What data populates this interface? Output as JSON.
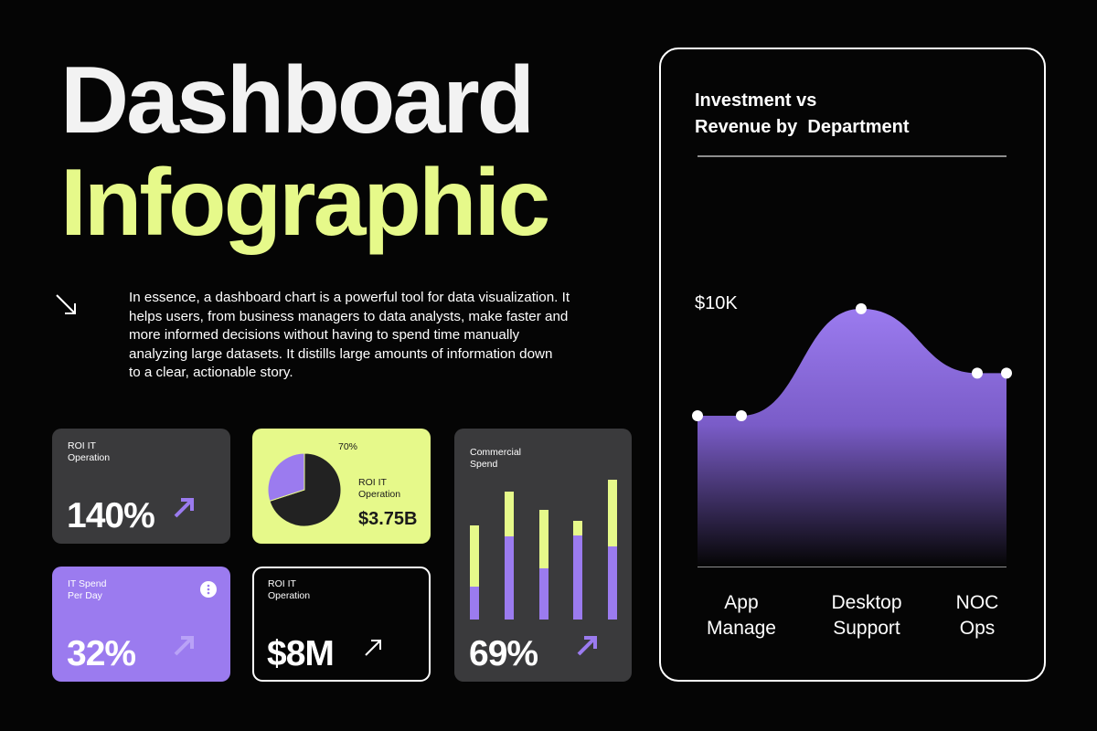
{
  "header": {
    "title_lines": [
      "Dashboard",
      "Infographic"
    ],
    "description_lines": [
      "In essence, a dashboard chart is a powerful tool for data visualization. It",
      "helps users, from business managers to data analysts, make faster and",
      "more informed decisions without having to spend time manually",
      "analyzing large datasets. It distills large amounts of information down",
      "to a clear, actionable story."
    ]
  },
  "cards": [
    {
      "label_lines": [
        "ROI IT",
        "Operation"
      ],
      "value": "140%"
    },
    {
      "label_lines": [
        "IT Spend",
        "Per Day"
      ],
      "value": "32%"
    },
    {
      "label_lines": [
        "ROI IT",
        "Operation"
      ],
      "value": "$8M"
    },
    {
      "label_lines": [
        "ROI IT",
        "Operation"
      ],
      "value": "$3.75B"
    },
    {
      "label_lines": [
        "Commercial",
        "Spend"
      ],
      "value": "69%"
    }
  ],
  "chart_data": [
    {
      "type": "pie",
      "values": [
        70,
        30
      ],
      "value_labels": [
        "70%",
        null
      ],
      "colors": [
        "#222222",
        "#9b7bef"
      ]
    },
    {
      "type": "bar",
      "stacked": true,
      "categories": [
        null,
        null,
        null,
        null,
        null
      ],
      "series": [
        {
          "color": "#9b7bef",
          "values": [
            36,
            91,
            56,
            92,
            80
          ]
        },
        {
          "color": "#e6f98a",
          "values": [
            67,
            49,
            64,
            16,
            73
          ]
        }
      ],
      "ylim": [
        0,
        160
      ]
    },
    {
      "type": "area",
      "title": [
        "Investment vs",
        "Revenue by  Department"
      ],
      "categories": [
        null,
        "App Manage",
        "Desktop Support",
        "NOC Ops",
        null
      ],
      "values": [
        5850,
        5850,
        10000,
        7500,
        7500
      ],
      "value_labels": [
        null,
        null,
        "$10K",
        null,
        null
      ],
      "color": "#9b7bef",
      "ylim": [
        0,
        14000
      ]
    }
  ]
}
